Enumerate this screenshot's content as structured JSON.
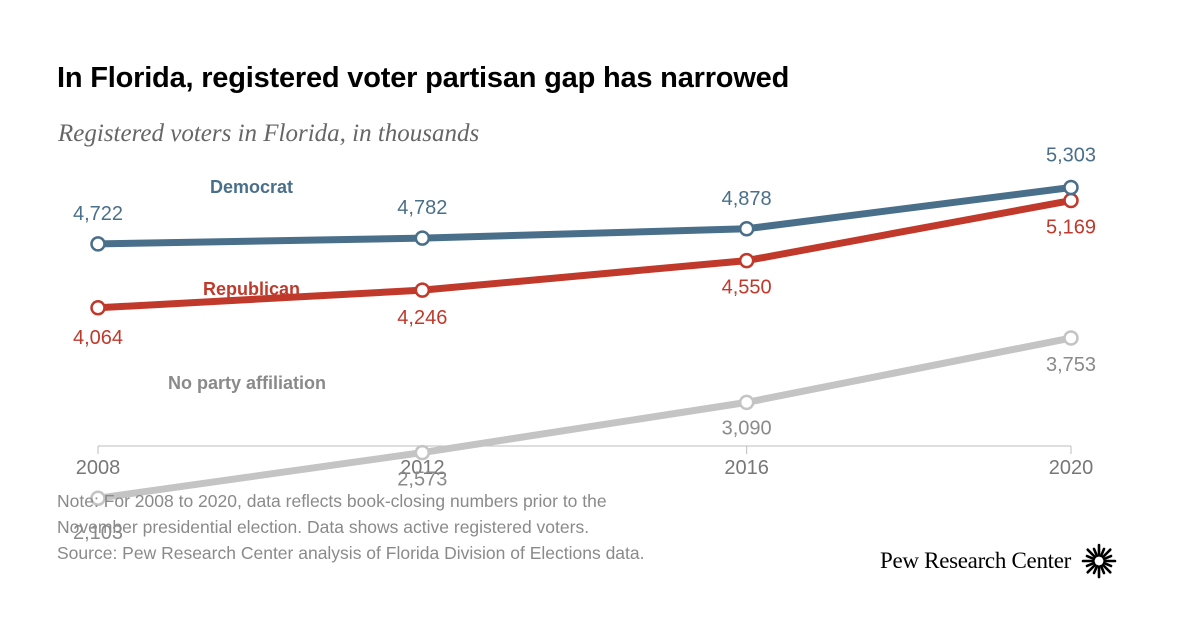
{
  "header": {
    "title": "In Florida, registered voter partisan gap has narrowed",
    "subtitle": "Registered voters in Florida, in thousands"
  },
  "chart_data": {
    "type": "line",
    "x": [
      2008,
      2012,
      2016,
      2020
    ],
    "x_tick_labels": [
      "2008",
      "2012",
      "2016",
      "2020"
    ],
    "ylim": [
      0,
      5500
    ],
    "grid": false,
    "series": [
      {
        "name": "Democrat",
        "color": "#4a6f8a",
        "values": [
          4722,
          4782,
          4878,
          5303
        ],
        "labels": [
          "4,722",
          "4,782",
          "4,878",
          "5,303"
        ]
      },
      {
        "name": "Republican",
        "color": "#c0392b",
        "values": [
          4064,
          4246,
          4550,
          5169
        ],
        "labels": [
          "4,064",
          "4,246",
          "4,550",
          "5,169"
        ]
      },
      {
        "name": "No party affiliation",
        "color": "#c4c4c4",
        "text_color": "#8a8a8a",
        "values": [
          2103,
          2573,
          3090,
          3753
        ],
        "labels": [
          "2,103",
          "2,573",
          "3,090",
          "3,753"
        ]
      }
    ]
  },
  "footer": {
    "note_line1": "Note: For 2008 to 2020, data reflects book-closing numbers prior to the",
    "note_line2": "November presidential election. Data shows active registered voters.",
    "source": "Source: Pew Research Center analysis of Florida Division of Elections data.",
    "logo_text": "Pew Research Center"
  }
}
